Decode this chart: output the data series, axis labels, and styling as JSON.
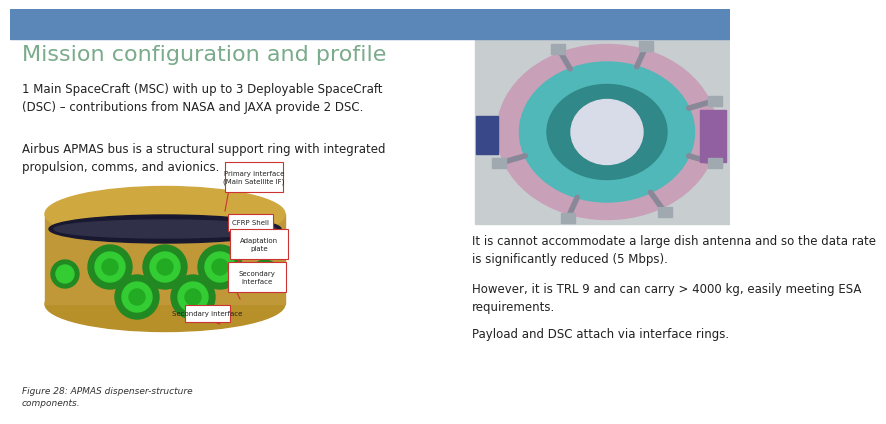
{
  "title": "Mission configuration and profile",
  "title_color": "#7aab8a",
  "title_fontsize": 16,
  "header_bar_color": "#5b86b8",
  "bg_color": "#ffffff",
  "body_text_color": "#222222",
  "body_fontsize": 8.5,
  "caption_fontsize": 6.5,
  "caption_color": "#333333",
  "para1": "1 Main SpaceCraft (MSC) with up to 3 Deployable SpaceCraft\n(DSC) – contributions from NASA and JAXA provide 2 DSC.",
  "para2": "Airbus APMAS bus is a structural support ring with integrated\npropulsion, comms, and avionics.",
  "para3": "It is cannot accommodate a large dish antenna and so the data rate\nis significantly reduced (5 Mbps).",
  "para4": "However, it is TRL 9 and can carry > 4000 kg, easily meeting ESA\nrequirements.",
  "para5": "Payload and DSC attach via interface rings.",
  "caption": "Figure 28: APMAS dispenser-structure\ncomponents.",
  "ann_labels": [
    "Primary interface\n(Main Satellite IF)",
    "CFRP Shell",
    "Adaptation\nplate",
    "Secondary\ninterface",
    "Secondary interface"
  ],
  "ann_color": "#cc3333",
  "ann_box_color": "#ffffff"
}
